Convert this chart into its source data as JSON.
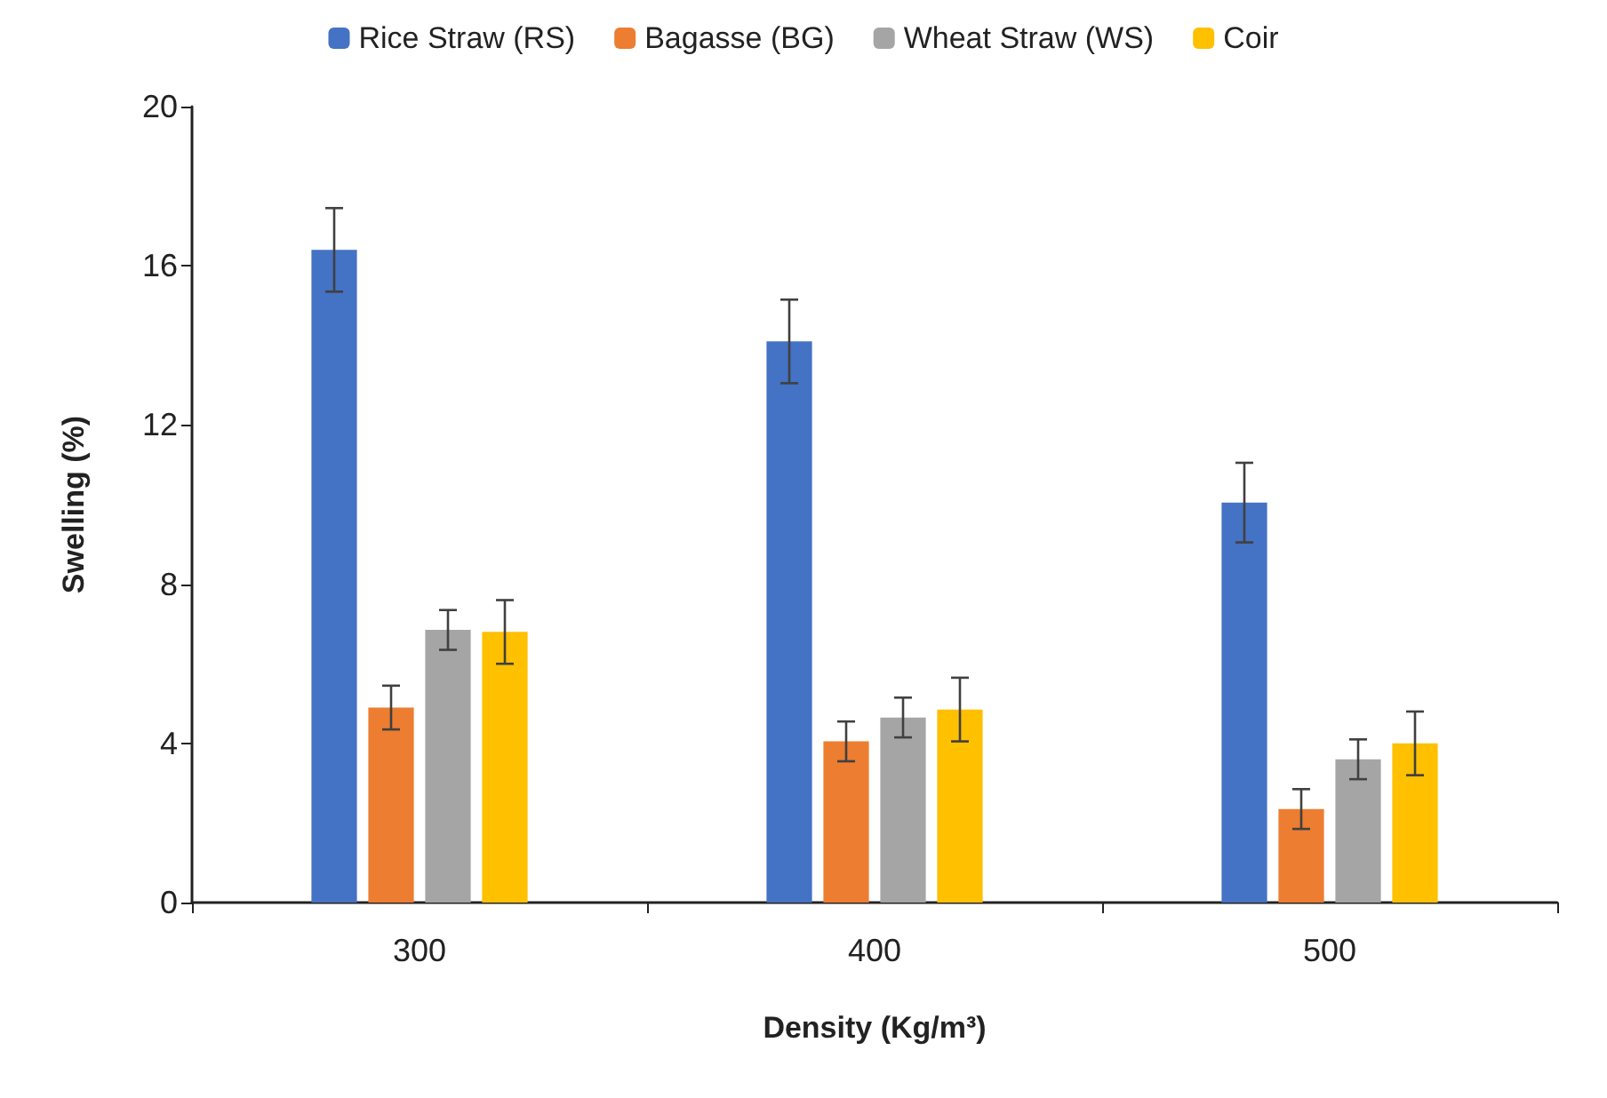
{
  "chart_data": {
    "type": "bar",
    "xlabel": "Density (Kg/m³)",
    "ylabel": "Swelling (%)",
    "categories": [
      "300",
      "400",
      "500"
    ],
    "series": [
      {
        "name": "Rice Straw (RS)",
        "color": "#4472c4",
        "values": [
          16.4,
          14.1,
          10.05
        ],
        "errors": [
          1.05,
          1.05,
          1.0
        ]
      },
      {
        "name": "Bagasse (BG)",
        "color": "#ed7d31",
        "values": [
          4.9,
          4.05,
          2.35
        ],
        "errors": [
          0.55,
          0.5,
          0.5
        ]
      },
      {
        "name": "Wheat Straw (WS)",
        "color": "#a5a5a5",
        "values": [
          6.85,
          4.65,
          3.6
        ],
        "errors": [
          0.5,
          0.5,
          0.5
        ]
      },
      {
        "name": "Coir",
        "color": "#ffc000",
        "values": [
          6.8,
          4.85,
          4.0
        ],
        "errors": [
          0.8,
          0.8,
          0.8
        ]
      }
    ],
    "ylim": [
      0,
      20
    ],
    "yticks": [
      0,
      4,
      8,
      12,
      16,
      20
    ],
    "grid": false,
    "legend": "top"
  }
}
